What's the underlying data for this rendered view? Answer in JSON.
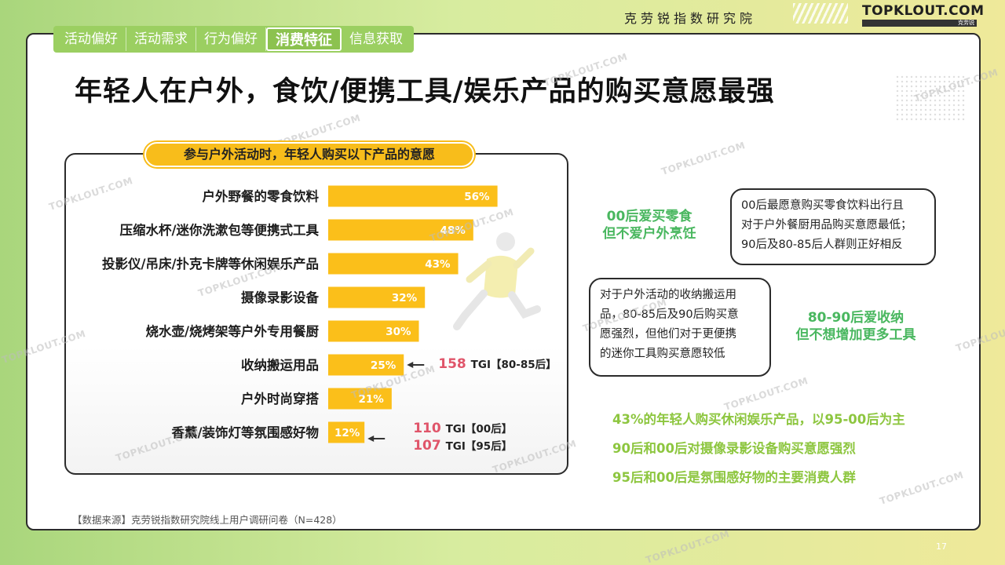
{
  "header": {
    "org": "克劳锐指数研究院",
    "brand": "TOPKLOUT.COM",
    "brand_sub": "克劳锐"
  },
  "tabs": [
    {
      "label": "活动偏好",
      "active": false
    },
    {
      "label": "活动需求",
      "active": false
    },
    {
      "label": "行为偏好",
      "active": false
    },
    {
      "label": "消费特征",
      "active": true
    },
    {
      "label": "信息获取",
      "active": false
    }
  ],
  "headline": "年轻人在户外，食饮/便携工具/娱乐产品的购买意愿最强",
  "chart_data": {
    "type": "bar",
    "orientation": "horizontal",
    "title": "参与户外活动时，年轻人购买以下产品的意愿",
    "categories": [
      "户外野餐的零食饮料",
      "压缩水杯/迷你洗漱包等便携式工具",
      "投影仪/吊床/扑克卡牌等休闲娱乐产品",
      "摄像录影设备",
      "烧水壶/烧烤架等户外专用餐厨",
      "收纳搬运用品",
      "户外时尚穿搭",
      "香薰/装饰灯等氛围感好物"
    ],
    "values": [
      56,
      48,
      43,
      32,
      30,
      25,
      21,
      12
    ],
    "value_labels": [
      "56%",
      "48%",
      "43%",
      "32%",
      "30%",
      "25%",
      "21%",
      "12%"
    ],
    "xlim": [
      0,
      60
    ],
    "bar_color": "#fbbf1a",
    "annotations": [
      {
        "category_index": 5,
        "lines": [
          {
            "num": "158",
            "text": "TGI【80-85后】"
          }
        ]
      },
      {
        "category_index": 7,
        "lines": [
          {
            "num": "110",
            "text": "TGI【00后】"
          },
          {
            "num": "107",
            "text": "TGI【95后】"
          }
        ]
      }
    ]
  },
  "notes": {
    "bubble1": [
      "00后最愿意购买零食饮料出行且",
      "对于户外餐厨用品购买意愿最低；",
      "90后及80-85后人群则正好相反"
    ],
    "bubble2": [
      "对于户外活动的收纳搬运用",
      "品，80-85后及90后购买意",
      "愿强烈，但他们对于更便携",
      "的迷你工具购买意愿较低"
    ],
    "green1": [
      "00后爱买零食",
      "但不爱户外烹饪"
    ],
    "green2": [
      "80-90后爱收纳",
      "但不想增加更多工具"
    ]
  },
  "findings": [
    "43%的年轻人购买休闲娱乐产品，以95-00后为主",
    "90后和00后对摄像录影设备购买意愿强烈",
    "95后和00后是氛围感好物的主要消费人群"
  ],
  "source": "【数据来源】克劳锐指数研究院线上用户调研问卷（N=428）",
  "page_number": "17",
  "watermark": "TOPKLOUT.COM",
  "colors": {
    "accent_green": "#9bcf61",
    "note_green": "#49b75f",
    "finding_green": "#8dc63f",
    "tgi_red": "#e0556a",
    "pill_yellow": "#f8bd1b"
  }
}
